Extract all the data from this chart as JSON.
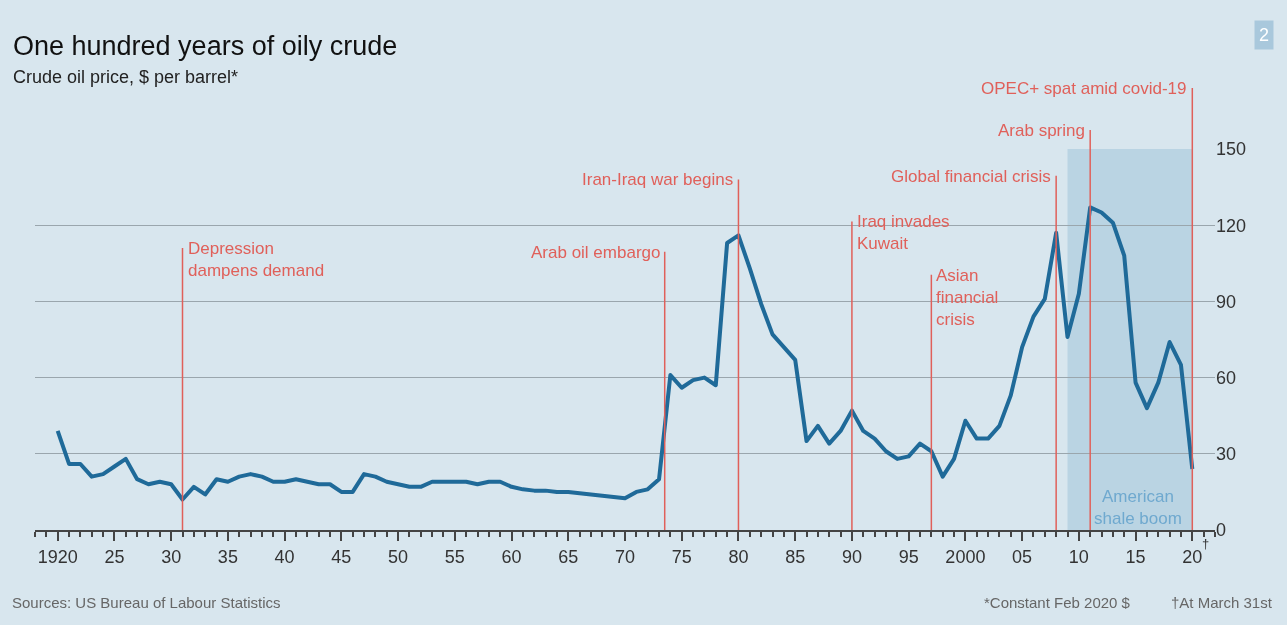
{
  "chart_data": {
    "type": "line",
    "title": "One hundred years of oily crude",
    "subtitle": "Crude oil price, $ per barrel*",
    "x": [
      1920,
      1921,
      1922,
      1923,
      1924,
      1925,
      1926,
      1927,
      1928,
      1929,
      1930,
      1931,
      1932,
      1933,
      1934,
      1935,
      1936,
      1937,
      1938,
      1939,
      1940,
      1941,
      1942,
      1943,
      1944,
      1945,
      1946,
      1947,
      1948,
      1949,
      1950,
      1951,
      1952,
      1953,
      1954,
      1955,
      1956,
      1957,
      1958,
      1959,
      1960,
      1961,
      1962,
      1963,
      1964,
      1965,
      1966,
      1967,
      1968,
      1969,
      1970,
      1971,
      1972,
      1973,
      1974,
      1975,
      1976,
      1977,
      1978,
      1979,
      1980,
      1981,
      1982,
      1983,
      1984,
      1985,
      1986,
      1987,
      1988,
      1989,
      1990,
      1991,
      1992,
      1993,
      1994,
      1995,
      1996,
      1997,
      1998,
      1999,
      2000,
      2001,
      2002,
      2003,
      2004,
      2005,
      2006,
      2007,
      2008,
      2009,
      2010,
      2011,
      2012,
      2013,
      2014,
      2015,
      2016,
      2017,
      2018,
      2019,
      2020
    ],
    "series": [
      {
        "color": "#1f6a99",
        "values": [
          39,
          26,
          26,
          21,
          22,
          25,
          28,
          20,
          18,
          19,
          18,
          12,
          17,
          14,
          20,
          19,
          21,
          22,
          21,
          19,
          19,
          20,
          19,
          18,
          18,
          15,
          15,
          22,
          21,
          19,
          18,
          17,
          17,
          19,
          19,
          19,
          19,
          18,
          19,
          19,
          17,
          16,
          15.5,
          15.5,
          15,
          15,
          14.5,
          14,
          13.5,
          13,
          12.5,
          15,
          16,
          20,
          61,
          56,
          59,
          60,
          57,
          113,
          116,
          103,
          89,
          77,
          72,
          67,
          35,
          41,
          34,
          39,
          47,
          39,
          36,
          31,
          28,
          29,
          34,
          31,
          21,
          28,
          43,
          36,
          36,
          41,
          53,
          72,
          84,
          91,
          117,
          76,
          93,
          127,
          125,
          121,
          108,
          58,
          48,
          58,
          74,
          65,
          24
        ]
      }
    ],
    "xlim": [
      1918,
      2022
    ],
    "xticks": [
      1920,
      {
        "value": 1925,
        "label": "25"
      },
      {
        "value": 1930,
        "label": "30"
      },
      {
        "value": 1935,
        "label": "35"
      },
      {
        "value": 1940,
        "label": "40"
      },
      {
        "value": 1945,
        "label": "45"
      },
      {
        "value": 1950,
        "label": "50"
      },
      {
        "value": 1955,
        "label": "55"
      },
      {
        "value": 1960,
        "label": "60"
      },
      {
        "value": 1965,
        "label": "65"
      },
      {
        "value": 1970,
        "label": "70"
      },
      {
        "value": 1975,
        "label": "75"
      },
      {
        "value": 1980,
        "label": "80"
      },
      {
        "value": 1985,
        "label": "85"
      },
      {
        "value": 1990,
        "label": "90"
      },
      {
        "value": 1995,
        "label": "95"
      },
      2000,
      {
        "value": 2005,
        "label": "05"
      },
      {
        "value": 2010,
        "label": "10"
      },
      {
        "value": 2015,
        "label": "15"
      },
      {
        "value": 2020,
        "label": "20"
      }
    ],
    "ylim": [
      0,
      150
    ],
    "yticks": [
      0,
      30,
      60,
      90,
      120,
      150
    ],
    "grid": "y",
    "marker": "none",
    "line_style": "solid",
    "ref_lines": [
      {
        "axis": "x",
        "value": 1931,
        "label": "Depression\ndampens demand",
        "color": "#e0605a"
      },
      {
        "axis": "x",
        "value": 1973.5,
        "label": "Arab oil embargo",
        "color": "#e0605a"
      },
      {
        "axis": "x",
        "value": 1980,
        "label": "Iran-Iraq war begins",
        "color": "#e0605a"
      },
      {
        "axis": "x",
        "value": 1990,
        "label": "Iraq invades\nKuwait",
        "color": "#e0605a"
      },
      {
        "axis": "x",
        "value": 1997,
        "label": "Asian\nfinancial\ncrisis",
        "color": "#e0605a"
      },
      {
        "axis": "x",
        "value": 2008,
        "label": "Global financial crisis",
        "color": "#e0605a"
      },
      {
        "axis": "x",
        "value": 2011,
        "label": "Arab spring",
        "color": "#e0605a"
      },
      {
        "axis": "x",
        "value": 2020,
        "label": "OPEC+ spat amid covid-19",
        "color": "#e0605a"
      }
    ],
    "bands": [
      {
        "axis": "x",
        "from": 2009,
        "to": 2020,
        "label": "American\nshale boom",
        "color": "#b3cfe0"
      }
    ],
    "annotations": [
      "Sources: US Bureau of Labour Statistics",
      "*Constant Feb 2020 $",
      "†At March 31st",
      "2",
      "†"
    ]
  }
}
